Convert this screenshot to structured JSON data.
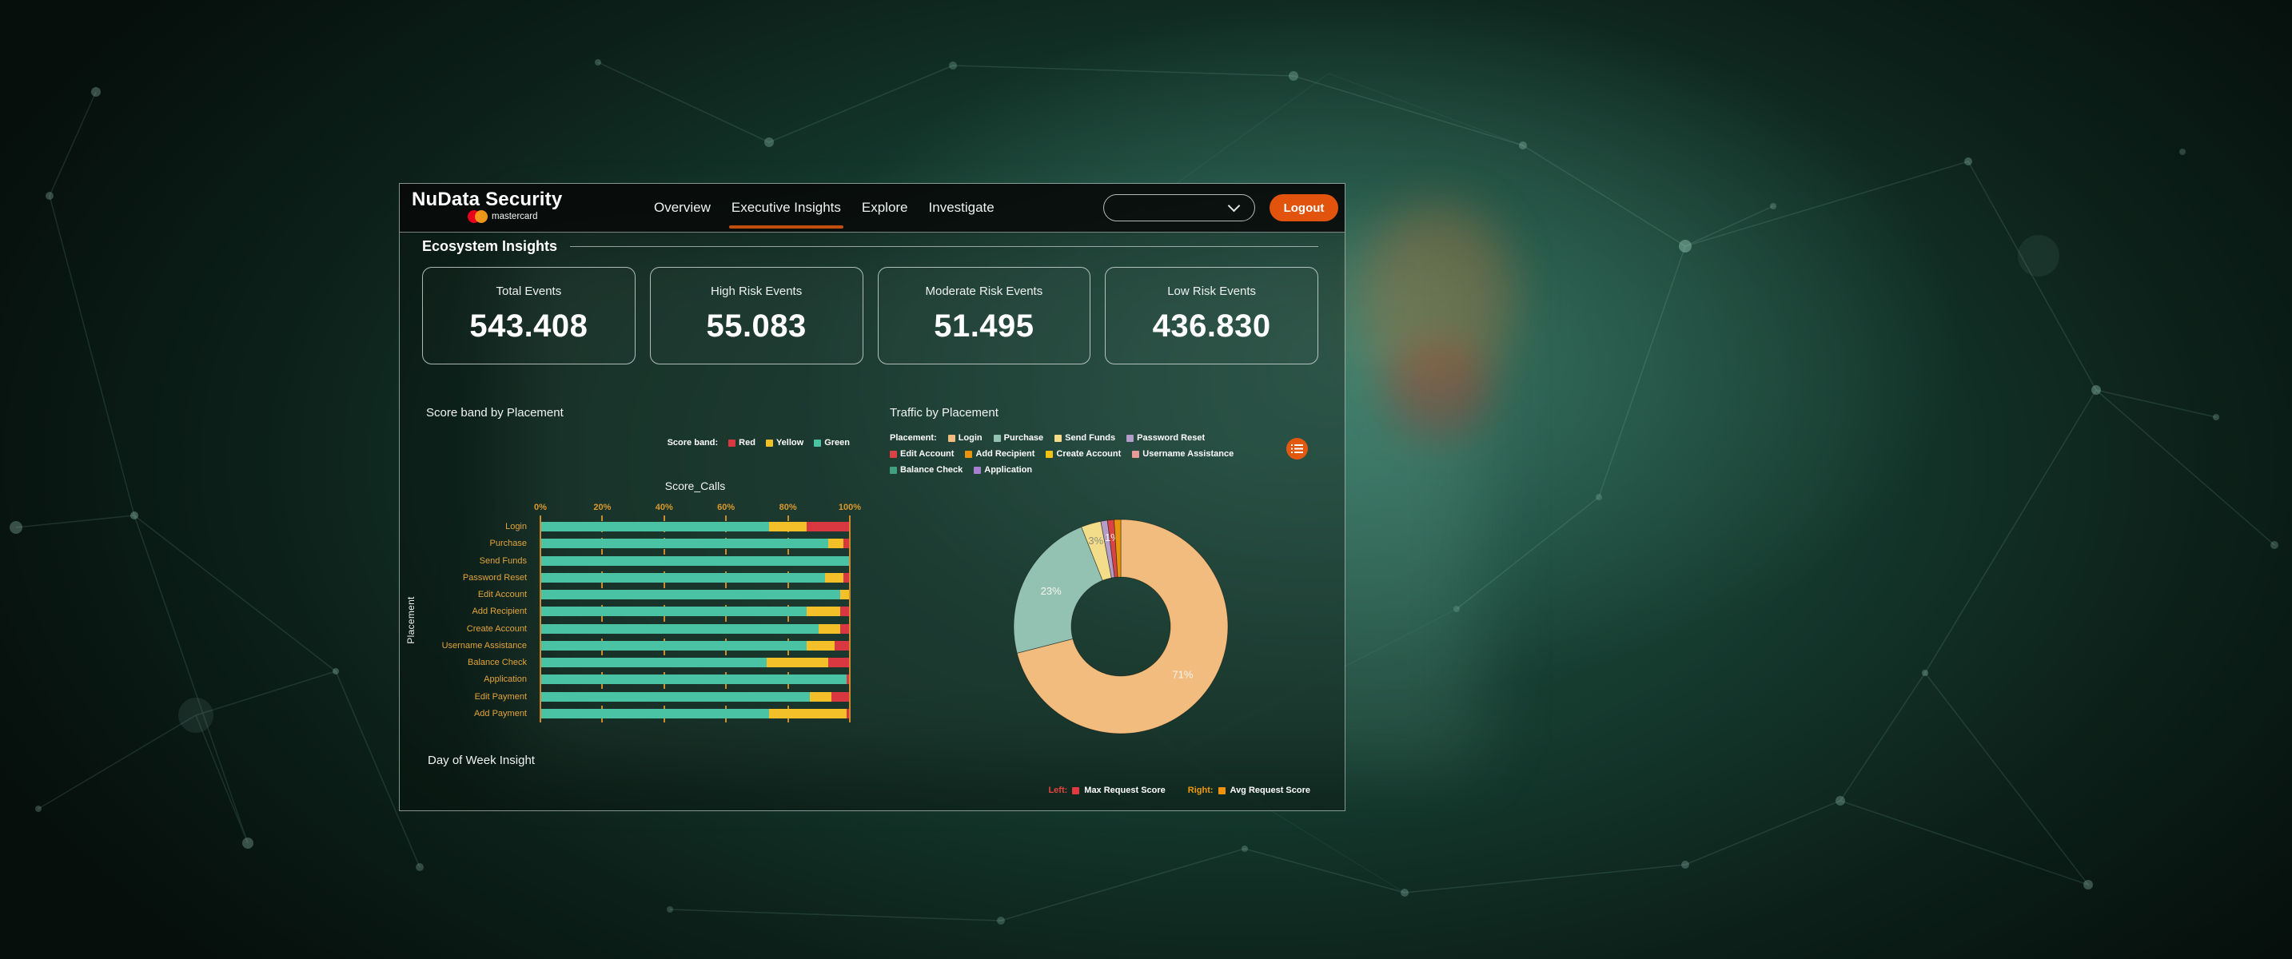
{
  "header": {
    "brand": "NuData Security",
    "brand_sub": "mastercard",
    "nav": [
      {
        "label": "Overview",
        "active": false
      },
      {
        "label": "Executive Insights",
        "active": true
      },
      {
        "label": "Explore",
        "active": false
      },
      {
        "label": "Investigate",
        "active": false
      }
    ],
    "dropdown_value": "",
    "logout_label": "Logout"
  },
  "sections": {
    "ecosystem_title": "Ecosystem Insights",
    "score_band_title": "Score band by Placement",
    "traffic_title": "Traffic by Placement"
  },
  "stat_cards": [
    {
      "label": "Total Events",
      "value": "543.408"
    },
    {
      "label": "High Risk Events",
      "value": "55.083"
    },
    {
      "label": "Moderate Risk Events",
      "value": "51.495"
    },
    {
      "label": "Low Risk Events",
      "value": "436.830"
    }
  ],
  "chart_data": [
    {
      "type": "bar",
      "orientation": "horizontal",
      "stacked": true,
      "title": "Score_Calls",
      "ylabel": "Placement",
      "legend_title": "Score band:",
      "legend": [
        {
          "label": "Red",
          "color": "#D93841"
        },
        {
          "label": "Yellow",
          "color": "#F4C02A"
        },
        {
          "label": "Green",
          "color": "#49C3A3"
        }
      ],
      "x_ticks": [
        "0%",
        "20%",
        "40%",
        "60%",
        "80%",
        "100%"
      ],
      "xlim": [
        0,
        100
      ],
      "categories": [
        "Login",
        "Purchase",
        "Send Funds",
        "Password Reset",
        "Edit Account",
        "Add Recipient",
        "Create Account",
        "Username Assistance",
        "Balance Check",
        "Application",
        "Edit Payment",
        "Add Payment"
      ],
      "series": [
        {
          "name": "Green",
          "color": "#49C3A3",
          "values": [
            74,
            93,
            100,
            92,
            97,
            86,
            90,
            86,
            73,
            99,
            87,
            74
          ]
        },
        {
          "name": "Yellow",
          "color": "#F4C02A",
          "values": [
            12,
            5,
            0,
            6,
            3,
            11,
            7,
            9,
            20,
            0,
            7,
            25
          ]
        },
        {
          "name": "Red",
          "color": "#D93841",
          "values": [
            14,
            2,
            0,
            2,
            0,
            3,
            3,
            5,
            7,
            1,
            6,
            1
          ]
        }
      ]
    },
    {
      "type": "pie",
      "donut": true,
      "title": "Traffic by Placement",
      "legend_title": "Placement:",
      "segments": [
        {
          "label": "Login",
          "value": 71,
          "color": "#F2BC7E",
          "slice_label": "71%",
          "slice_label_color": "#f5f5f0"
        },
        {
          "label": "Purchase",
          "value": 23,
          "color": "#93C2B2",
          "slice_label": "23%",
          "slice_label_color": "#f5f5f0"
        },
        {
          "label": "Send Funds",
          "value": 3,
          "color": "#F3DD8A",
          "slice_label": "3%",
          "slice_label_color": "#8d8d7a"
        },
        {
          "label": "Password Reset",
          "value": 1,
          "color": "#B59DCA",
          "slice_label": ""
        },
        {
          "label": "Edit Account",
          "value": 1,
          "color": "#DA4343",
          "slice_label": "1%",
          "slice_label_color": "#f5f5f0"
        },
        {
          "label": "Add Recipient",
          "value": 1,
          "color": "#E9940F",
          "slice_label": ""
        },
        {
          "label": "Create Account",
          "value": 0,
          "color": "#F3C213",
          "slice_label": ""
        },
        {
          "label": "Username Assistance",
          "value": 0,
          "color": "#E89A96",
          "slice_label": ""
        },
        {
          "label": "Balance Check",
          "value": 0,
          "color": "#3F9F7F",
          "slice_label": ""
        },
        {
          "label": "Application",
          "value": 0,
          "color": "#A87FD0",
          "slice_label": ""
        }
      ]
    }
  ],
  "day_of_week": {
    "title": "Day of Week Insight",
    "legend": [
      {
        "prefix": "Left:",
        "prefix_color": "#E4453F",
        "swatch_color": "#E03A3F",
        "label": "Max Request Score"
      },
      {
        "prefix": "Right:",
        "prefix_color": "#F09A0A",
        "swatch_color": "#F0930A",
        "label": "Avg Request Score"
      }
    ]
  }
}
